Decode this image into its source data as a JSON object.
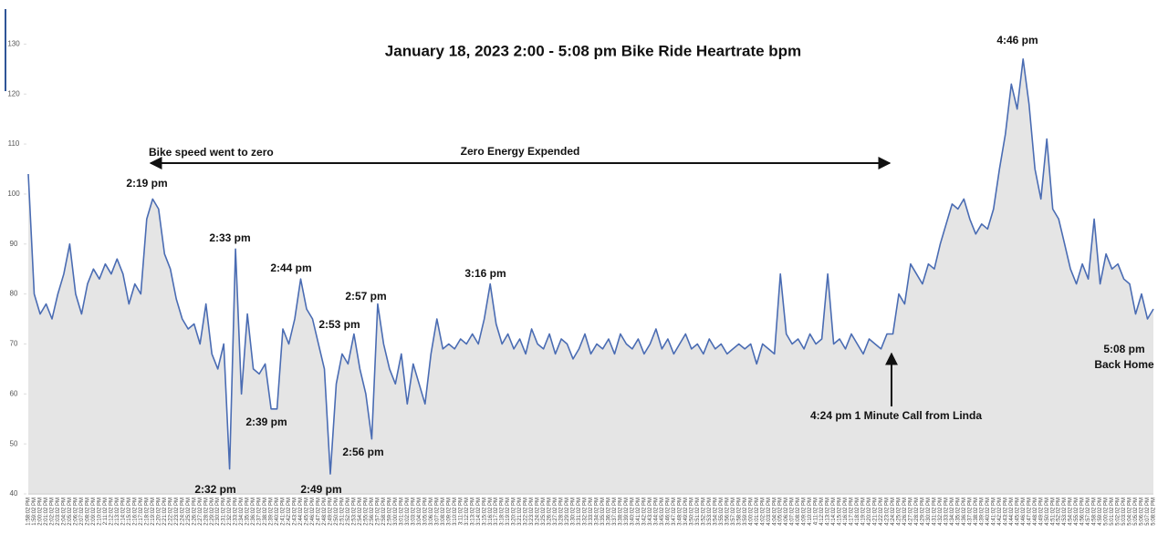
{
  "chart_data": {
    "type": "line",
    "title": "January 18, 2023 2:00 - 5:08 pm Bike Ride Heartrate bpm",
    "categories": [
      "1:58:02 PM",
      "1:59:02 PM",
      "2:00:02 PM",
      "2:01:02 PM",
      "2:02:02 PM",
      "2:03:02 PM",
      "2:04:02 PM",
      "2:05:02 PM",
      "2:06:02 PM",
      "2:07:02 PM",
      "2:08:02 PM",
      "2:09:02 PM",
      "2:10:02 PM",
      "2:11:02 PM",
      "2:12:02 PM",
      "2:13:02 PM",
      "2:14:02 PM",
      "2:15:02 PM",
      "2:16:02 PM",
      "2:17:02 PM",
      "2:18:02 PM",
      "2:19:02 PM",
      "2:20:02 PM",
      "2:21:02 PM",
      "2:22:02 PM",
      "2:23:02 PM",
      "2:24:02 PM",
      "2:25:02 PM",
      "2:26:02 PM",
      "2:27:02 PM",
      "2:28:02 PM",
      "2:29:02 PM",
      "2:30:02 PM",
      "2:31:02 PM",
      "2:32:02 PM",
      "2:33:02 PM",
      "2:34:02 PM",
      "2:35:02 PM",
      "2:36:02 PM",
      "2:37:02 PM",
      "2:38:02 PM",
      "2:39:02 PM",
      "2:40:02 PM",
      "2:41:02 PM",
      "2:42:02 PM",
      "2:43:02 PM",
      "2:44:02 PM",
      "2:45:02 PM",
      "2:46:02 PM",
      "2:47:02 PM",
      "2:48:02 PM",
      "2:49:02 PM",
      "2:50:02 PM",
      "2:51:02 PM",
      "2:52:02 PM",
      "2:53:02 PM",
      "2:54:02 PM",
      "2:55:02 PM",
      "2:56:02 PM",
      "2:57:02 PM",
      "2:58:02 PM",
      "2:59:02 PM",
      "3:00:02 PM",
      "3:01:02 PM",
      "3:02:02 PM",
      "3:03:02 PM",
      "3:04:02 PM",
      "3:05:02 PM",
      "3:06:02 PM",
      "3:07:02 PM",
      "3:08:02 PM",
      "3:09:02 PM",
      "3:10:02 PM",
      "3:11:02 PM",
      "3:12:02 PM",
      "3:13:02 PM",
      "3:14:02 PM",
      "3:15:02 PM",
      "3:16:02 PM",
      "3:17:02 PM",
      "3:18:02 PM",
      "3:19:02 PM",
      "3:20:02 PM",
      "3:21:02 PM",
      "3:22:02 PM",
      "3:23:02 PM",
      "3:24:02 PM",
      "3:25:02 PM",
      "3:26:02 PM",
      "3:27:02 PM",
      "3:28:02 PM",
      "3:29:02 PM",
      "3:30:02 PM",
      "3:31:02 PM",
      "3:32:02 PM",
      "3:33:02 PM",
      "3:34:02 PM",
      "3:35:02 PM",
      "3:36:02 PM",
      "3:37:02 PM",
      "3:38:02 PM",
      "3:39:02 PM",
      "3:40:02 PM",
      "3:41:02 PM",
      "3:42:02 PM",
      "3:43:02 PM",
      "3:44:02 PM",
      "3:45:02 PM",
      "3:46:02 PM",
      "3:47:02 PM",
      "3:48:02 PM",
      "3:49:02 PM",
      "3:50:02 PM",
      "3:51:02 PM",
      "3:52:02 PM",
      "3:53:02 PM",
      "3:54:02 PM",
      "3:55:02 PM",
      "3:56:02 PM",
      "3:57:02 PM",
      "3:58:02 PM",
      "3:59:02 PM",
      "4:00:02 PM",
      "4:01:02 PM",
      "4:02:02 PM",
      "4:03:02 PM",
      "4:04:02 PM",
      "4:05:02 PM",
      "4:06:02 PM",
      "4:07:02 PM",
      "4:08:02 PM",
      "4:09:02 PM",
      "4:10:02 PM",
      "4:11:02 PM",
      "4:12:02 PM",
      "4:13:02 PM",
      "4:14:02 PM",
      "4:15:02 PM",
      "4:16:02 PM",
      "4:17:02 PM",
      "4:18:02 PM",
      "4:19:02 PM",
      "4:20:02 PM",
      "4:21:02 PM",
      "4:22:02 PM",
      "4:23:02 PM",
      "4:24:02 PM",
      "4:25:02 PM",
      "4:26:02 PM",
      "4:27:02 PM",
      "4:28:02 PM",
      "4:29:02 PM",
      "4:30:02 PM",
      "4:31:02 PM",
      "4:32:02 PM",
      "4:33:02 PM",
      "4:34:02 PM",
      "4:35:02 PM",
      "4:36:02 PM",
      "4:37:02 PM",
      "4:38:02 PM",
      "4:39:02 PM",
      "4:40:02 PM",
      "4:41:02 PM",
      "4:42:02 PM",
      "4:43:02 PM",
      "4:44:02 PM",
      "4:45:02 PM",
      "4:46:02 PM",
      "4:47:02 PM",
      "4:48:02 PM",
      "4:49:02 PM",
      "4:50:02 PM",
      "4:51:02 PM",
      "4:52:02 PM",
      "4:53:02 PM",
      "4:54:02 PM",
      "4:55:02 PM",
      "4:56:02 PM",
      "4:57:02 PM",
      "4:58:02 PM",
      "4:59:02 PM",
      "5:00:02 PM",
      "5:01:02 PM",
      "5:02:02 PM",
      "5:03:02 PM",
      "5:04:02 PM",
      "5:05:02 PM",
      "5:06:02 PM",
      "5:07:02 PM",
      "5:08:02 PM"
    ],
    "values": [
      104,
      80,
      76,
      78,
      75,
      80,
      84,
      90,
      80,
      76,
      82,
      85,
      83,
      86,
      84,
      87,
      84,
      78,
      82,
      80,
      95,
      99,
      97,
      88,
      85,
      79,
      75,
      73,
      74,
      70,
      78,
      68,
      65,
      70,
      45,
      89,
      60,
      76,
      65,
      64,
      66,
      57,
      57,
      73,
      70,
      75,
      83,
      77,
      75,
      70,
      65,
      44,
      62,
      68,
      66,
      72,
      65,
      60,
      51,
      78,
      70,
      65,
      62,
      68,
      58,
      66,
      62,
      58,
      68,
      75,
      69,
      70,
      69,
      71,
      70,
      72,
      70,
      75,
      82,
      74,
      70,
      72,
      69,
      71,
      68,
      73,
      70,
      69,
      72,
      68,
      71,
      70,
      67,
      69,
      72,
      68,
      70,
      69,
      71,
      68,
      72,
      70,
      69,
      71,
      68,
      70,
      73,
      69,
      71,
      68,
      70,
      72,
      69,
      70,
      68,
      71,
      69,
      70,
      68,
      69,
      70,
      69,
      70,
      66,
      70,
      69,
      68,
      84,
      72,
      70,
      71,
      69,
      72,
      70,
      71,
      84,
      70,
      71,
      69,
      72,
      70,
      68,
      71,
      70,
      69,
      72,
      72,
      80,
      78,
      86,
      84,
      82,
      86,
      85,
      90,
      94,
      98,
      97,
      99,
      95,
      92,
      94,
      93,
      97,
      105,
      112,
      122,
      117,
      127,
      118,
      105,
      99,
      111,
      97,
      95,
      90,
      85,
      82,
      86,
      83,
      95,
      82,
      88,
      85,
      86,
      83,
      82,
      76,
      80,
      75,
      77
    ],
    "color": "#4a6cb3",
    "area_color": "#dcdcdc",
    "ylim": [
      40,
      137
    ],
    "yticks": [
      40,
      50,
      60,
      70,
      80,
      90,
      100,
      110,
      120,
      130
    ],
    "annotations": [
      "Bike speed went to zero",
      "Zero Energy Expended",
      "2:19 pm",
      "2:33 pm",
      "2:32 pm",
      "2:39 pm",
      "2:44 pm",
      "2:49 pm",
      "2:53 pm",
      "2:56 pm",
      "2:57 pm",
      "3:16 pm",
      "4:24 pm 1 Minute Call from Linda",
      "4:46 pm",
      "5:08 pm",
      "Back Home"
    ]
  }
}
